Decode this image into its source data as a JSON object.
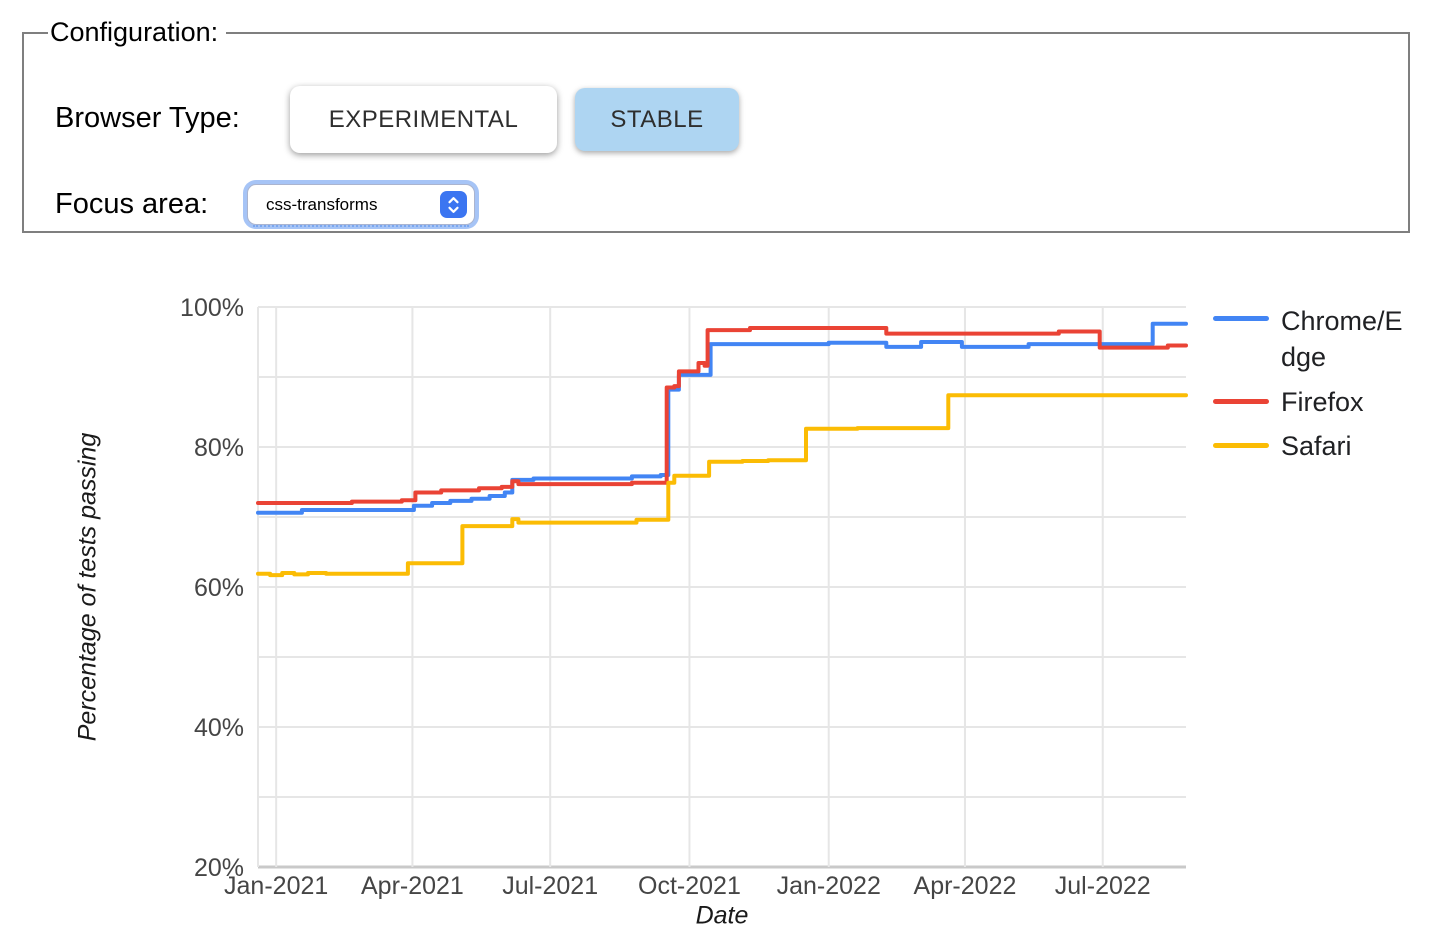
{
  "config": {
    "legend_text": "Configuration:",
    "browser_type_label": "Browser Type:",
    "buttons": [
      {
        "label": "EXPERIMENTAL",
        "selected": false
      },
      {
        "label": "STABLE",
        "selected": true
      }
    ],
    "selected_bg": "#aed5f2",
    "focus_area_label": "Focus area:",
    "focus_area_value": "css-transforms",
    "stepper_color": "#3b75f1"
  },
  "chart_data": {
    "type": "line",
    "interpolation": "step-after",
    "title": "",
    "xlabel": "Date",
    "ylabel": "Percentage of tests passing",
    "ylim": [
      20,
      100
    ],
    "ygrid_step": 10,
    "grid": true,
    "legend_position": "right",
    "x_domain": [
      "2020-12-20",
      "2022-08-25"
    ],
    "xticks": [
      {
        "date": "2021-01-01",
        "label": "Jan-2021"
      },
      {
        "date": "2021-04-01",
        "label": "Apr-2021"
      },
      {
        "date": "2021-07-01",
        "label": "Jul-2021"
      },
      {
        "date": "2021-10-01",
        "label": "Oct-2021"
      },
      {
        "date": "2022-01-01",
        "label": "Jan-2022"
      },
      {
        "date": "2022-04-01",
        "label": "Apr-2022"
      },
      {
        "date": "2022-07-01",
        "label": "Jul-2022"
      }
    ],
    "yticks": [
      {
        "value": 100,
        "label": "100%"
      },
      {
        "value": 80,
        "label": "80%"
      },
      {
        "value": 60,
        "label": "60%"
      },
      {
        "value": 40,
        "label": "40%"
      },
      {
        "value": 20,
        "label": "20%"
      }
    ],
    "series": [
      {
        "name": "Chrome/Edge",
        "color": "#4285F4",
        "points": [
          [
            "2020-12-20",
            70.6
          ],
          [
            "2021-01-18",
            71.0
          ],
          [
            "2021-04-02",
            71.6
          ],
          [
            "2021-04-14",
            72.0
          ],
          [
            "2021-04-26",
            72.3
          ],
          [
            "2021-05-10",
            72.6
          ],
          [
            "2021-05-22",
            73.0
          ],
          [
            "2021-06-01",
            73.5
          ],
          [
            "2021-06-06",
            75.3
          ],
          [
            "2021-06-20",
            75.5
          ],
          [
            "2021-08-24",
            75.8
          ],
          [
            "2021-09-12",
            76.0
          ],
          [
            "2021-09-17",
            88.2
          ],
          [
            "2021-09-24",
            90.3
          ],
          [
            "2021-10-15",
            94.7
          ],
          [
            "2022-01-01",
            94.9
          ],
          [
            "2022-02-08",
            94.3
          ],
          [
            "2022-03-03",
            95.0
          ],
          [
            "2022-03-30",
            94.3
          ],
          [
            "2022-05-13",
            94.7
          ],
          [
            "2022-08-03",
            97.6
          ],
          [
            "2022-08-25",
            97.6
          ]
        ]
      },
      {
        "name": "Firefox",
        "color": "#EA4335",
        "points": [
          [
            "2020-12-20",
            72.0
          ],
          [
            "2021-02-20",
            72.2
          ],
          [
            "2021-03-25",
            72.4
          ],
          [
            "2021-04-03",
            73.5
          ],
          [
            "2021-04-20",
            73.8
          ],
          [
            "2021-05-15",
            74.1
          ],
          [
            "2021-05-30",
            74.3
          ],
          [
            "2021-06-06",
            75.1
          ],
          [
            "2021-06-10",
            74.7
          ],
          [
            "2021-08-24",
            74.9
          ],
          [
            "2021-09-16",
            88.5
          ],
          [
            "2021-09-21",
            88.7
          ],
          [
            "2021-09-24",
            90.8
          ],
          [
            "2021-10-07",
            92.0
          ],
          [
            "2021-10-11",
            91.6
          ],
          [
            "2021-10-13",
            96.7
          ],
          [
            "2021-11-10",
            97.0
          ],
          [
            "2022-02-08",
            96.2
          ],
          [
            "2022-06-02",
            96.5
          ],
          [
            "2022-06-29",
            94.2
          ],
          [
            "2022-08-13",
            94.5
          ],
          [
            "2022-08-25",
            94.5
          ]
        ]
      },
      {
        "name": "Safari",
        "color": "#FBBC04",
        "points": [
          [
            "2020-12-20",
            61.9
          ],
          [
            "2020-12-28",
            61.7
          ],
          [
            "2021-01-05",
            62.0
          ],
          [
            "2021-01-13",
            61.8
          ],
          [
            "2021-01-22",
            62.0
          ],
          [
            "2021-02-03",
            61.9
          ],
          [
            "2021-03-29",
            63.4
          ],
          [
            "2021-05-04",
            68.7
          ],
          [
            "2021-06-06",
            69.7
          ],
          [
            "2021-06-10",
            69.2
          ],
          [
            "2021-08-27",
            69.6
          ],
          [
            "2021-09-17",
            74.9
          ],
          [
            "2021-09-21",
            75.9
          ],
          [
            "2021-10-14",
            77.9
          ],
          [
            "2021-11-05",
            78.0
          ],
          [
            "2021-11-22",
            78.1
          ],
          [
            "2021-12-17",
            82.6
          ],
          [
            "2022-01-20",
            82.7
          ],
          [
            "2022-03-21",
            87.4
          ],
          [
            "2022-08-25",
            87.4
          ]
        ]
      }
    ]
  }
}
